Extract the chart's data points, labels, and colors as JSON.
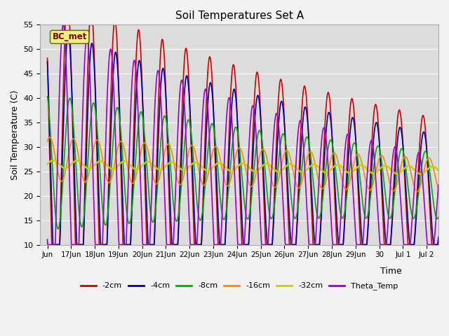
{
  "title": "Soil Temperatures Set A",
  "xlabel": "Time",
  "ylabel": "Soil Temperature (C)",
  "ylim": [
    10,
    55
  ],
  "background_color": "#dcdcdc",
  "fig_facecolor": "#f2f2f2",
  "series": {
    "-2cm": {
      "color": "#cc0000",
      "lw": 1.2
    },
    "-4cm": {
      "color": "#000099",
      "lw": 1.2
    },
    "-8cm": {
      "color": "#00aa00",
      "lw": 1.2
    },
    "-16cm": {
      "color": "#ff8800",
      "lw": 1.2
    },
    "-32cm": {
      "color": "#cccc00",
      "lw": 1.8
    },
    "Theta_Temp": {
      "color": "#9900cc",
      "lw": 1.2
    }
  },
  "annotation_text": "BC_met",
  "annotation_bg": "#eeee88",
  "annotation_border": "#666600"
}
